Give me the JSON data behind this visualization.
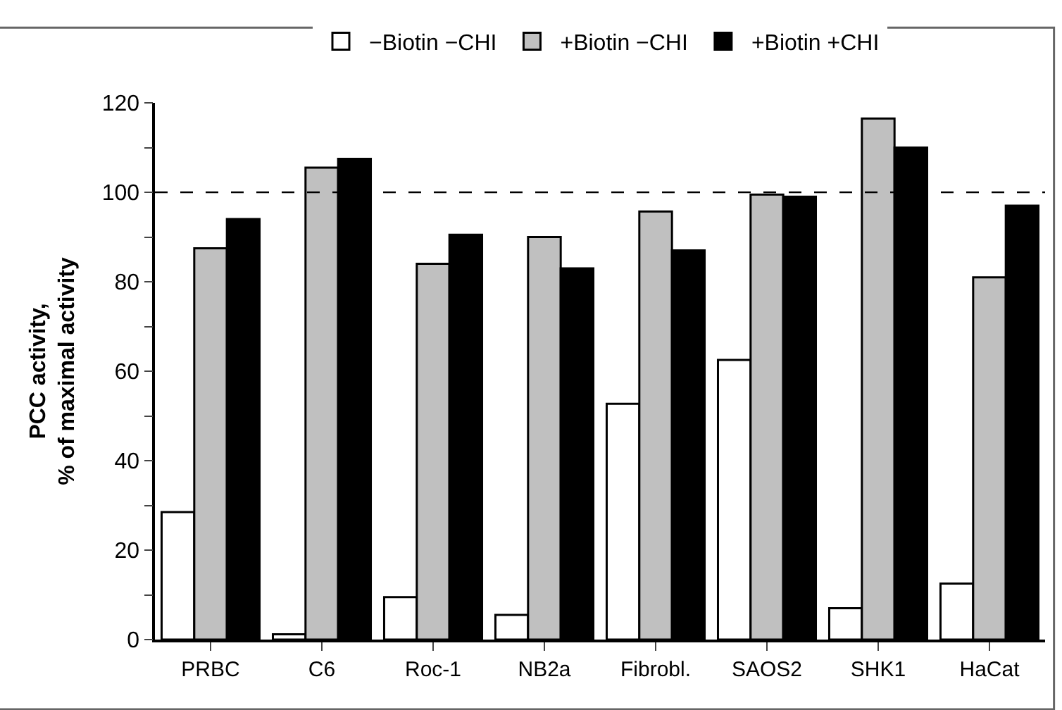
{
  "chart_data": {
    "type": "bar",
    "ylabel": "PCC activity,\n% of maximal activity",
    "categories": [
      "PRBC",
      "C6",
      "Roc-1",
      "NB2a",
      "Fibrobl.",
      "SAOS2",
      "SHK1",
      "HaCat"
    ],
    "series": [
      {
        "name": "−Biotin −CHI",
        "color": "#ffffff",
        "values": [
          28.5,
          1.2,
          9.5,
          5.5,
          52.7,
          62.5,
          7,
          12.5
        ]
      },
      {
        "name": "+Biotin −CHI",
        "color": "#c0c0c0",
        "values": [
          87.5,
          105.5,
          84,
          90,
          95.7,
          99.5,
          116.5,
          81
        ]
      },
      {
        "name": "+Biotin +CHI",
        "color": "#000000",
        "values": [
          94,
          107.5,
          90.5,
          83,
          87,
          99,
          110,
          97
        ]
      }
    ],
    "ylim": [
      0,
      120
    ],
    "yticks": [
      0,
      {
        "value": 10,
        "label": null
      },
      20,
      {
        "value": 30,
        "label": null
      },
      40,
      {
        "value": 50,
        "label": null
      },
      60,
      {
        "value": 70,
        "label": null
      },
      80,
      {
        "value": 90,
        "label": null
      },
      100,
      {
        "value": 110,
        "label": null
      },
      120
    ],
    "ref_lines": [
      {
        "axis": "y",
        "value": 100,
        "label": null,
        "color": "#000000",
        "line_style": "dashed"
      }
    ],
    "legend": "top"
  }
}
